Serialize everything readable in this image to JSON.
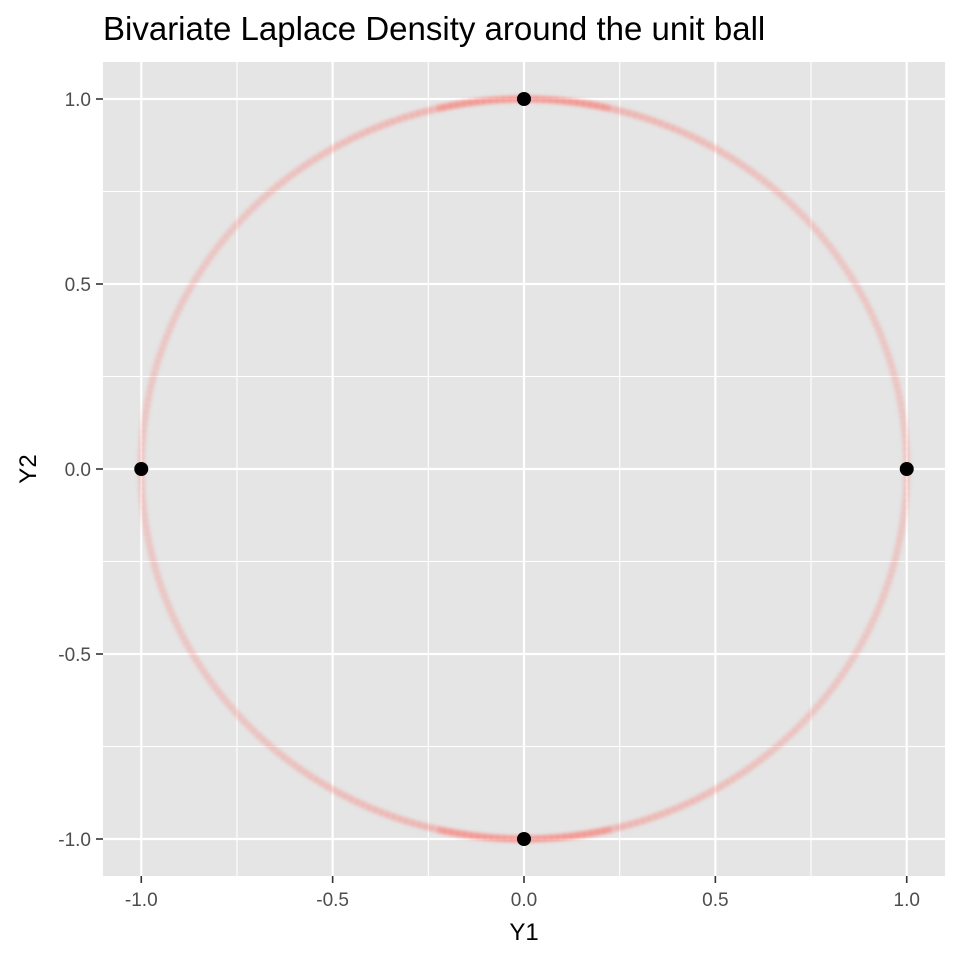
{
  "chart_data": {
    "type": "scatter",
    "title": "Bivariate Laplace Density around the unit ball",
    "xlabel": "Y1",
    "ylabel": "Y2",
    "xlim": [
      -1.1,
      1.1
    ],
    "ylim": [
      -1.1,
      1.1
    ],
    "x_ticks": [
      -1.0,
      -0.5,
      0.0,
      0.5,
      1.0
    ],
    "x_tick_labels": [
      "-1.0",
      "-0.5",
      "0.0",
      "0.5",
      "1.0"
    ],
    "y_ticks": [
      -1.0,
      -0.5,
      0.0,
      0.5,
      1.0
    ],
    "y_tick_labels": [
      "-1.0",
      "-0.5",
      "0.0",
      "0.5",
      "1.0"
    ],
    "grid": true,
    "legend": "none",
    "points": [
      {
        "x": 0.0,
        "y": 1.0
      },
      {
        "x": 1.0,
        "y": 0.0
      },
      {
        "x": 0.0,
        "y": -1.0
      },
      {
        "x": -1.0,
        "y": 0.0
      }
    ],
    "density_curve": {
      "shape": "unit circle",
      "center": [
        0,
        0
      ],
      "radius": 1.0,
      "color": "#F8766D"
    },
    "colors": {
      "panel_background": "#e5e5e5",
      "grid_line": "#ffffff",
      "point": "#000000",
      "curve": "#F8766D"
    }
  }
}
